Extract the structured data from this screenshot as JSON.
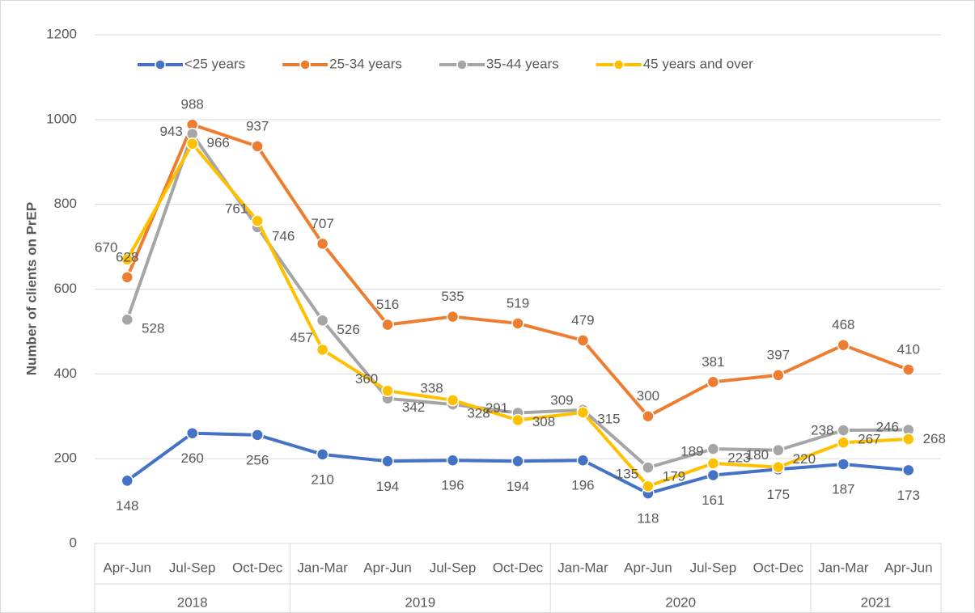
{
  "chart_data": {
    "type": "line",
    "y_axis_label": "Number of clients on PrEP",
    "categories": [
      "Apr-Jun",
      "Jul-Sep",
      "Oct-Dec",
      "Jan-Mar",
      "Apr-Jun",
      "Jul-Sep",
      "Oct-Dec",
      "Jan-Mar",
      "Apr-Jun",
      "Jul-Sep",
      "Oct-Dec",
      "Jan-Mar",
      "Apr-Jun"
    ],
    "category_groups": [
      "2018",
      null,
      null,
      "2019",
      null,
      null,
      null,
      "2020",
      null,
      null,
      null,
      "2021",
      null
    ],
    "series": [
      {
        "name": "<25 years",
        "color": "#4472c4",
        "values": [
          148,
          260,
          256,
          210,
          194,
          196,
          194,
          196,
          118,
          161,
          175,
          187,
          173
        ]
      },
      {
        "name": "25-34 years",
        "color": "#ed7d31",
        "values": [
          628,
          988,
          937,
          707,
          516,
          535,
          519,
          479,
          300,
          381,
          397,
          468,
          410
        ]
      },
      {
        "name": "35-44 years",
        "color": "#a5a5a5",
        "values": [
          528,
          966,
          746,
          526,
          342,
          328,
          308,
          315,
          179,
          223,
          220,
          267,
          268
        ]
      },
      {
        "name": "45 years and over",
        "color": "#ffc000",
        "values": [
          670,
          943,
          761,
          457,
          360,
          338,
          291,
          309,
          135,
          189,
          180,
          238,
          246
        ]
      }
    ],
    "ylim": [
      0,
      1200
    ],
    "yticks": [
      0,
      200,
      400,
      600,
      800,
      1000,
      1200
    ],
    "grid": true,
    "legend": "top"
  }
}
